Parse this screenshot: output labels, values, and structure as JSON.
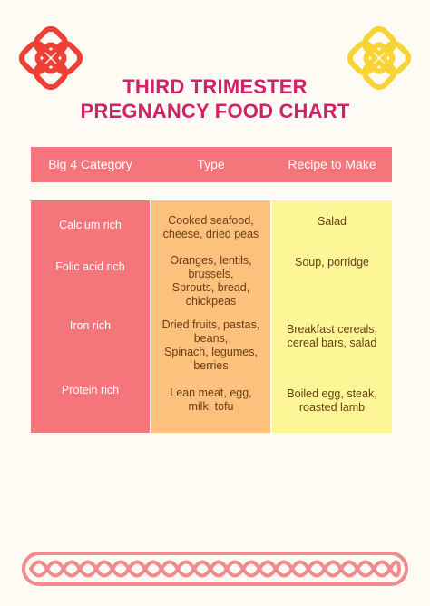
{
  "title": {
    "line1": "THIRD TRIMESTER",
    "line2": "PREGNANCY FOOD CHART"
  },
  "table": {
    "headers": [
      "Big 4 Category",
      "Type",
      "Recipe to Make"
    ],
    "rows": [
      {
        "category": "Calcium rich",
        "type": [
          "Cooked seafood,",
          "cheese, dried peas"
        ],
        "recipe": [
          "Salad"
        ]
      },
      {
        "category": "Folic acid rich",
        "type": [
          "Oranges, lentils,",
          "brussels,",
          "Sprouts, bread,",
          "chickpeas"
        ],
        "recipe": [
          "Soup, porridge"
        ]
      },
      {
        "category": "Iron rich",
        "type": [
          "Dried fruits, pastas,",
          "beans,",
          "Spinach, legumes,",
          "berries"
        ],
        "recipe": [
          "Breakfast cereals,",
          "cereal bars, salad"
        ]
      },
      {
        "category": "Protein rich",
        "type": [
          "Lean meat, egg,",
          "milk, tofu"
        ],
        "recipe": [
          "Boiled egg, steak,",
          "roasted lamb"
        ]
      }
    ]
  },
  "decor": {
    "knot_left_color": "#ef3e36",
    "knot_right_color": "#f7d333",
    "border_color": "#ef8a8e",
    "left_knot_icon": "celtic-knot-icon",
    "right_knot_icon": "celtic-knot-icon",
    "bottom_border_icon": "celtic-braid-border"
  }
}
